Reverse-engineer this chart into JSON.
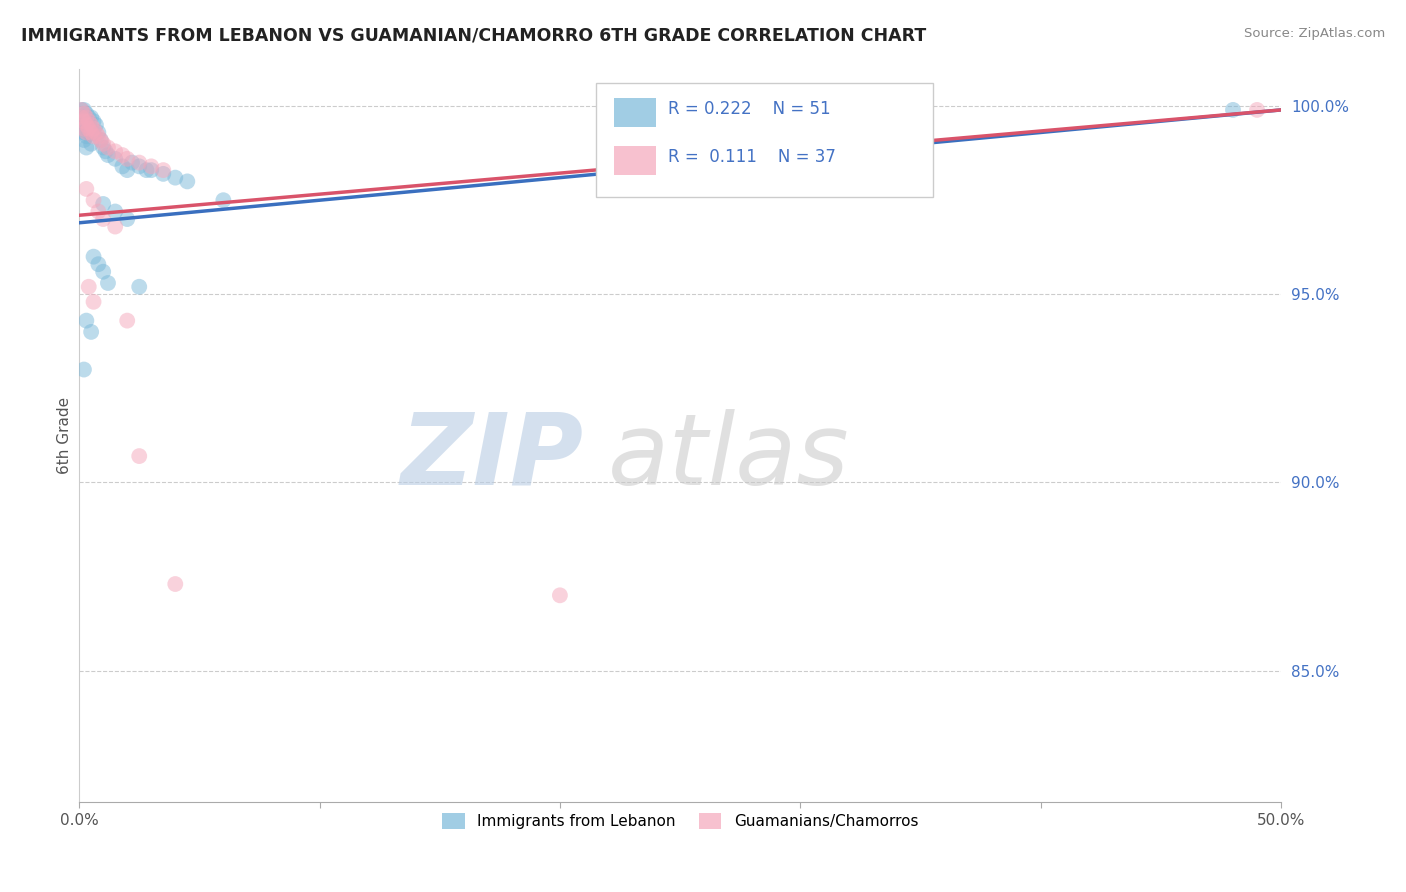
{
  "title": "IMMIGRANTS FROM LEBANON VS GUAMANIAN/CHAMORRO 6TH GRADE CORRELATION CHART",
  "source": "Source: ZipAtlas.com",
  "ylabel": "6th Grade",
  "xlim": [
    0.0,
    0.5
  ],
  "ylim": [
    0.815,
    1.01
  ],
  "xticks": [
    0.0,
    0.1,
    0.2,
    0.3,
    0.4,
    0.5
  ],
  "xticklabels": [
    "0.0%",
    "",
    "",
    "",
    "",
    "50.0%"
  ],
  "yticks": [
    0.85,
    0.9,
    0.95,
    1.0
  ],
  "yticklabels": [
    "85.0%",
    "90.0%",
    "95.0%",
    "100.0%"
  ],
  "blue_color": "#7ab8d9",
  "pink_color": "#f4a7bb",
  "blue_line_color": "#3a6fbf",
  "pink_line_color": "#d9536a",
  "blue_line_y0": 0.969,
  "blue_line_y1": 0.999,
  "pink_line_y0": 0.971,
  "pink_line_y1": 0.999,
  "blue_scatter": [
    [
      0.001,
      0.999
    ],
    [
      0.001,
      0.997
    ],
    [
      0.001,
      0.996
    ],
    [
      0.001,
      0.994
    ],
    [
      0.002,
      0.999
    ],
    [
      0.002,
      0.997
    ],
    [
      0.002,
      0.995
    ],
    [
      0.002,
      0.993
    ],
    [
      0.002,
      0.991
    ],
    [
      0.003,
      0.998
    ],
    [
      0.003,
      0.996
    ],
    [
      0.003,
      0.994
    ],
    [
      0.003,
      0.992
    ],
    [
      0.003,
      0.989
    ],
    [
      0.004,
      0.997
    ],
    [
      0.004,
      0.995
    ],
    [
      0.004,
      0.993
    ],
    [
      0.005,
      0.997
    ],
    [
      0.005,
      0.993
    ],
    [
      0.005,
      0.99
    ],
    [
      0.006,
      0.996
    ],
    [
      0.006,
      0.993
    ],
    [
      0.007,
      0.995
    ],
    [
      0.008,
      0.993
    ],
    [
      0.009,
      0.991
    ],
    [
      0.01,
      0.989
    ],
    [
      0.011,
      0.988
    ],
    [
      0.012,
      0.987
    ],
    [
      0.015,
      0.986
    ],
    [
      0.018,
      0.984
    ],
    [
      0.02,
      0.983
    ],
    [
      0.022,
      0.985
    ],
    [
      0.025,
      0.984
    ],
    [
      0.028,
      0.983
    ],
    [
      0.03,
      0.983
    ],
    [
      0.035,
      0.982
    ],
    [
      0.04,
      0.981
    ],
    [
      0.045,
      0.98
    ],
    [
      0.01,
      0.974
    ],
    [
      0.015,
      0.972
    ],
    [
      0.02,
      0.97
    ],
    [
      0.006,
      0.96
    ],
    [
      0.008,
      0.958
    ],
    [
      0.01,
      0.956
    ],
    [
      0.012,
      0.953
    ],
    [
      0.003,
      0.943
    ],
    [
      0.005,
      0.94
    ],
    [
      0.002,
      0.93
    ],
    [
      0.025,
      0.952
    ],
    [
      0.06,
      0.975
    ],
    [
      0.48,
      0.999
    ]
  ],
  "pink_scatter": [
    [
      0.001,
      0.999
    ],
    [
      0.001,
      0.997
    ],
    [
      0.002,
      0.998
    ],
    [
      0.002,
      0.996
    ],
    [
      0.002,
      0.994
    ],
    [
      0.003,
      0.997
    ],
    [
      0.003,
      0.995
    ],
    [
      0.003,
      0.993
    ],
    [
      0.004,
      0.996
    ],
    [
      0.004,
      0.994
    ],
    [
      0.005,
      0.995
    ],
    [
      0.005,
      0.993
    ],
    [
      0.006,
      0.994
    ],
    [
      0.006,
      0.992
    ],
    [
      0.007,
      0.993
    ],
    [
      0.008,
      0.992
    ],
    [
      0.009,
      0.991
    ],
    [
      0.01,
      0.99
    ],
    [
      0.012,
      0.989
    ],
    [
      0.015,
      0.988
    ],
    [
      0.018,
      0.987
    ],
    [
      0.02,
      0.986
    ],
    [
      0.025,
      0.985
    ],
    [
      0.03,
      0.984
    ],
    [
      0.035,
      0.983
    ],
    [
      0.003,
      0.978
    ],
    [
      0.006,
      0.975
    ],
    [
      0.008,
      0.972
    ],
    [
      0.01,
      0.97
    ],
    [
      0.015,
      0.968
    ],
    [
      0.004,
      0.952
    ],
    [
      0.006,
      0.948
    ],
    [
      0.02,
      0.943
    ],
    [
      0.025,
      0.907
    ],
    [
      0.04,
      0.873
    ],
    [
      0.49,
      0.999
    ],
    [
      0.2,
      0.87
    ]
  ]
}
